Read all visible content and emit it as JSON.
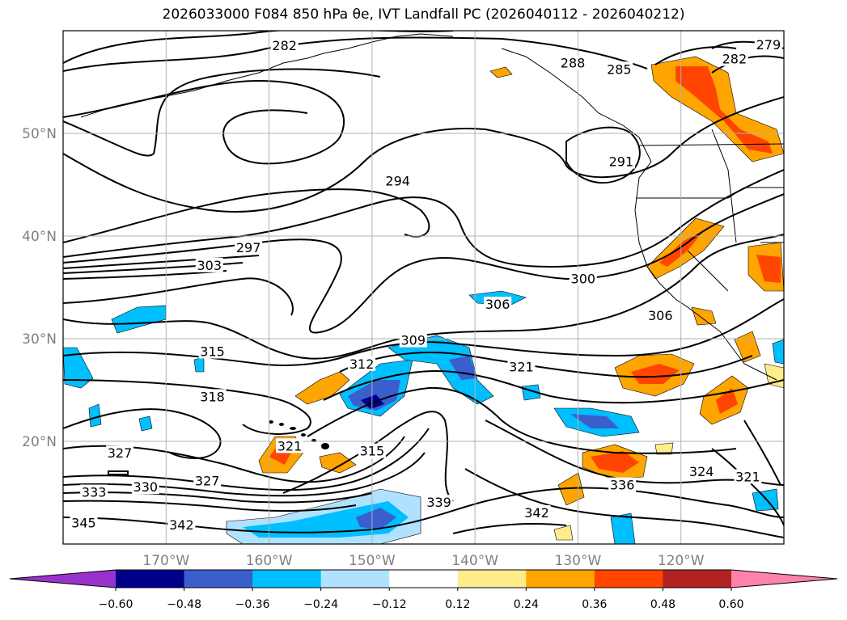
{
  "chart_data": {
    "type": "map-contour",
    "title": "2026033000 F084 850 hPa θe, IVT Landfall PC (2026040112 - 2026040212)",
    "lon_ticks": [
      "170°W",
      "160°W",
      "150°W",
      "140°W",
      "130°W",
      "120°W"
    ],
    "lon_values": [
      -170,
      -160,
      -150,
      -140,
      -130,
      -120
    ],
    "lat_ticks": [
      "50°N",
      "40°N",
      "30°N",
      "20°N"
    ],
    "lat_values": [
      50,
      40,
      30,
      20
    ],
    "xlim": [
      -180,
      -110
    ],
    "ylim": [
      10,
      60
    ],
    "grid": true,
    "colorbar": {
      "ticks": [
        "−0.60",
        "−0.48",
        "−0.36",
        "−0.24",
        "−0.12",
        "0.12",
        "0.24",
        "0.36",
        "0.48",
        "0.60"
      ],
      "levels": [
        -0.6,
        -0.48,
        -0.36,
        -0.24,
        -0.12,
        0.12,
        0.24,
        0.36,
        0.48,
        0.6
      ],
      "colors": [
        "#9932cc",
        "#00008b",
        "#3a5fcd",
        "#00bfff",
        "#b0e2ff",
        "#ffffff",
        "#ffec8b",
        "#ffa500",
        "#ff4500",
        "#b22222",
        "#ff82ab"
      ],
      "extend": "both"
    },
    "contour_labels": [
      {
        "text": "282",
        "lon": -158.5,
        "lat": 58.5
      },
      {
        "text": "279",
        "lon": -111.5,
        "lat": 58.6
      },
      {
        "text": "282",
        "lon": -114.8,
        "lat": 57.2
      },
      {
        "text": "288",
        "lon": -130.5,
        "lat": 56.8
      },
      {
        "text": "285",
        "lon": -126.0,
        "lat": 56.2
      },
      {
        "text": "291",
        "lon": -125.8,
        "lat": 47.2
      },
      {
        "text": "294",
        "lon": -147.5,
        "lat": 45.3
      },
      {
        "text": "297",
        "lon": -162.0,
        "lat": 38.8
      },
      {
        "text": "303",
        "lon": -165.8,
        "lat": 37.1
      },
      {
        "text": "300",
        "lon": -129.5,
        "lat": 35.8
      },
      {
        "text": "306",
        "lon": -137.8,
        "lat": 33.3
      },
      {
        "text": "306",
        "lon": -122.0,
        "lat": 32.2
      },
      {
        "text": "309",
        "lon": -146.0,
        "lat": 29.8
      },
      {
        "text": "315",
        "lon": -165.5,
        "lat": 28.7
      },
      {
        "text": "312",
        "lon": -151.0,
        "lat": 27.5
      },
      {
        "text": "321",
        "lon": -135.5,
        "lat": 27.2
      },
      {
        "text": "318",
        "lon": -165.5,
        "lat": 24.3
      },
      {
        "text": "321",
        "lon": -158.0,
        "lat": 19.5
      },
      {
        "text": "327",
        "lon": -174.5,
        "lat": 18.8
      },
      {
        "text": "315",
        "lon": -150.0,
        "lat": 19.0
      },
      {
        "text": "324",
        "lon": -118.0,
        "lat": 17.0
      },
      {
        "text": "321",
        "lon": -113.5,
        "lat": 16.5
      },
      {
        "text": "327",
        "lon": -166.0,
        "lat": 16.1
      },
      {
        "text": "330",
        "lon": -172.0,
        "lat": 15.5
      },
      {
        "text": "333",
        "lon": -177.0,
        "lat": 15.0
      },
      {
        "text": "336",
        "lon": -125.7,
        "lat": 15.7
      },
      {
        "text": "339",
        "lon": -143.5,
        "lat": 14.0
      },
      {
        "text": "342",
        "lon": -134.0,
        "lat": 13.0
      },
      {
        "text": "342",
        "lon": -168.5,
        "lat": 11.8
      },
      {
        "text": "345",
        "lon": -178.0,
        "lat": 12.0
      }
    ]
  }
}
